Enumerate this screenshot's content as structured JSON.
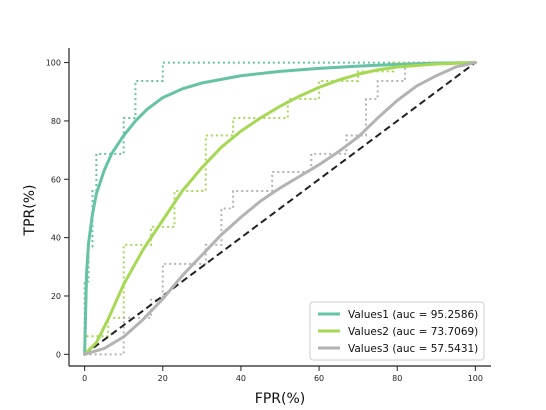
{
  "chart_data": {
    "type": "line",
    "xlabel": "FPR(%)",
    "ylabel": "TPR(%)",
    "xlim": [
      -4,
      104
    ],
    "ylim": [
      -4,
      105
    ],
    "xticks": [
      0,
      20,
      40,
      60,
      80,
      100
    ],
    "yticks": [
      0,
      20,
      40,
      60,
      80,
      100
    ],
    "grid": false,
    "legend_position": "lower-right",
    "series": [
      {
        "name": "Values1 (auc = 95.2586)",
        "color": "#66c2a5",
        "smooth_x": [
          0,
          0.5,
          1,
          2,
          3,
          5,
          7,
          10,
          13,
          16,
          20,
          25,
          30,
          40,
          50,
          60,
          70,
          80,
          90,
          100
        ],
        "smooth_y": [
          0,
          28,
          38,
          48,
          55,
          63,
          69,
          75,
          80,
          84,
          88,
          91,
          93,
          95.5,
          97,
          98,
          98.8,
          99.4,
          99.8,
          100
        ],
        "step_x": [
          0,
          0,
          1,
          1,
          2,
          2,
          3,
          3,
          6,
          6,
          10,
          10,
          13,
          13,
          20,
          20,
          100
        ],
        "step_y": [
          0,
          25,
          25,
          37,
          37,
          56,
          56,
          68.7,
          68.7,
          68.7,
          68.7,
          81,
          81,
          93.7,
          93.7,
          100,
          100
        ]
      },
      {
        "name": "Values2 (auc = 73.7069)",
        "color": "#a6d854",
        "smooth_x": [
          0,
          3,
          6,
          10,
          15,
          20,
          25,
          30,
          35,
          40,
          45,
          50,
          55,
          60,
          65,
          70,
          75,
          80,
          90,
          100
        ],
        "smooth_y": [
          0,
          4,
          12,
          24,
          36,
          46,
          56,
          64,
          71,
          76.5,
          81,
          85,
          88.5,
          91.5,
          94,
          96,
          97.5,
          98.5,
          99.5,
          100
        ],
        "step_x": [
          0,
          0,
          6,
          6,
          10,
          10,
          17,
          17,
          23,
          23,
          31,
          31,
          38,
          38,
          52,
          52,
          60,
          60,
          70,
          70,
          79,
          79,
          100
        ],
        "step_y": [
          0,
          6.2,
          6.2,
          12.5,
          12.5,
          37.5,
          37.5,
          43.7,
          43.7,
          56,
          56,
          75,
          75,
          81,
          81,
          87.5,
          87.5,
          93.7,
          93.7,
          97,
          97,
          100,
          100
        ]
      },
      {
        "name": "Values3 (auc = 57.5431)",
        "color": "#b3b3b3",
        "smooth_x": [
          0,
          5,
          10,
          15,
          20,
          25,
          30,
          35,
          40,
          45,
          50,
          55,
          60,
          65,
          70,
          75,
          80,
          85,
          90,
          95,
          100
        ],
        "smooth_y": [
          0,
          2,
          6,
          12,
          19,
          27,
          34,
          41,
          47,
          52.5,
          57,
          61,
          65,
          69.5,
          74.5,
          81,
          87,
          92,
          95.5,
          98.5,
          100
        ],
        "step_x": [
          0,
          0,
          10,
          10,
          17,
          17,
          20,
          20,
          25,
          25,
          31,
          31,
          35,
          35,
          38,
          38,
          48,
          48,
          58,
          58,
          67,
          67,
          72,
          72,
          75,
          75,
          82,
          82,
          100
        ],
        "step_y": [
          0,
          0,
          0,
          12.5,
          12.5,
          18.7,
          18.7,
          31,
          31,
          31,
          31,
          37.5,
          37.5,
          50,
          50,
          56,
          56,
          62.5,
          62.5,
          68.7,
          68.7,
          75,
          75,
          87.5,
          87.5,
          93.7,
          93.7,
          100,
          100
        ]
      },
      {
        "name": "",
        "color": "#222222",
        "style": "dashed",
        "x": [
          0,
          100
        ],
        "y": [
          0,
          100
        ]
      }
    ]
  }
}
